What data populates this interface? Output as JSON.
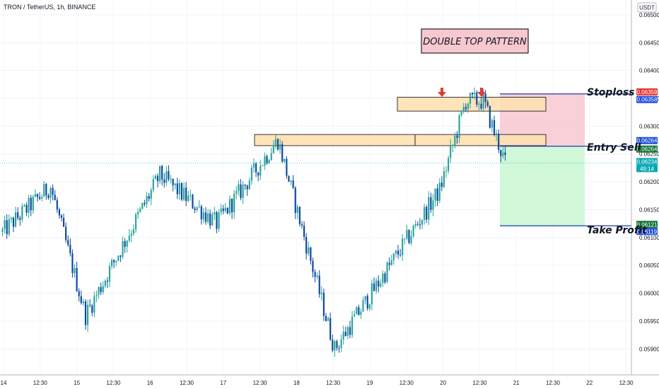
{
  "header": {
    "symbol_line": "TRON / TetherUS, 1h, BINANCE"
  },
  "currency_button": "USDT",
  "colors": {
    "up": "#26a69a",
    "down": "#0d47a1",
    "zone_fill": "#ffe0b2",
    "stop_fill": "#f8c8d0",
    "profit_fill": "#c8f7d1",
    "level_line": "#1a3bb3",
    "red_tag": "#e53935",
    "blue_tag": "#1e4fd6",
    "teal_tag": "#0aa8b5",
    "arrow": "#e53935"
  },
  "chart_data": {
    "type": "candlestick",
    "title": "DOUBLE TOP PATTERN",
    "ylim": [
      0.0588,
      0.06505
    ],
    "y_ticks": [
      "0.06500",
      "0.06450",
      "0.06400",
      "0.06350",
      "0.06300",
      "0.06250",
      "0.06200",
      "0.06150",
      "0.06100",
      "0.06050",
      "0.06000",
      "0.05950",
      "0.05900"
    ],
    "x_ticks": [
      "14",
      "12:30",
      "15",
      "12:30",
      "16",
      "12:30",
      "17",
      "12:30",
      "18",
      "12:30",
      "19",
      "12:30",
      "20",
      "12:30",
      "21",
      "12:30",
      "22",
      "12:30"
    ],
    "key_points": [
      {
        "label": "start",
        "price": 0.0611
      },
      {
        "label": "local_high_14",
        "price": 0.06192
      },
      {
        "label": "low_15",
        "price": 0.0596
      },
      {
        "label": "high_16",
        "price": 0.06212
      },
      {
        "label": "drop_16",
        "price": 0.06125
      },
      {
        "label": "high_17",
        "price": 0.06275
      },
      {
        "label": "low_18",
        "price": 0.059
      },
      {
        "label": "rally_19",
        "price": 0.06185
      },
      {
        "label": "first_top",
        "price": 0.06345
      },
      {
        "label": "second_top",
        "price": 0.06345
      },
      {
        "label": "last",
        "price": 0.06234
      }
    ],
    "zones": [
      {
        "name": "top_resistance",
        "from_price": 0.06327,
        "to_price": 0.06352
      },
      {
        "name": "neckline",
        "from_price": 0.06265,
        "to_price": 0.06285
      }
    ],
    "levels": [
      {
        "label": "Stoploss",
        "price": 0.06358
      },
      {
        "label": "Entry Sell",
        "price": 0.06264
      },
      {
        "label": "Take Profit",
        "price": 0.06121
      }
    ],
    "price_tags": [
      {
        "value": "0.06359",
        "color": "red"
      },
      {
        "value": "0.06358",
        "color": "blue"
      },
      {
        "value": "0.06264",
        "color": "blue"
      },
      {
        "value": "0.06264",
        "color": "green"
      },
      {
        "value": "0.06234",
        "color": "teal"
      },
      {
        "value": "49:14",
        "color": "teal"
      },
      {
        "value": "0.06121",
        "color": "green"
      },
      {
        "value": "0.06119",
        "color": "blue"
      }
    ],
    "markers": [
      {
        "type": "down-arrow",
        "label": "first_top"
      },
      {
        "type": "down-arrow",
        "label": "second_top"
      }
    ]
  }
}
